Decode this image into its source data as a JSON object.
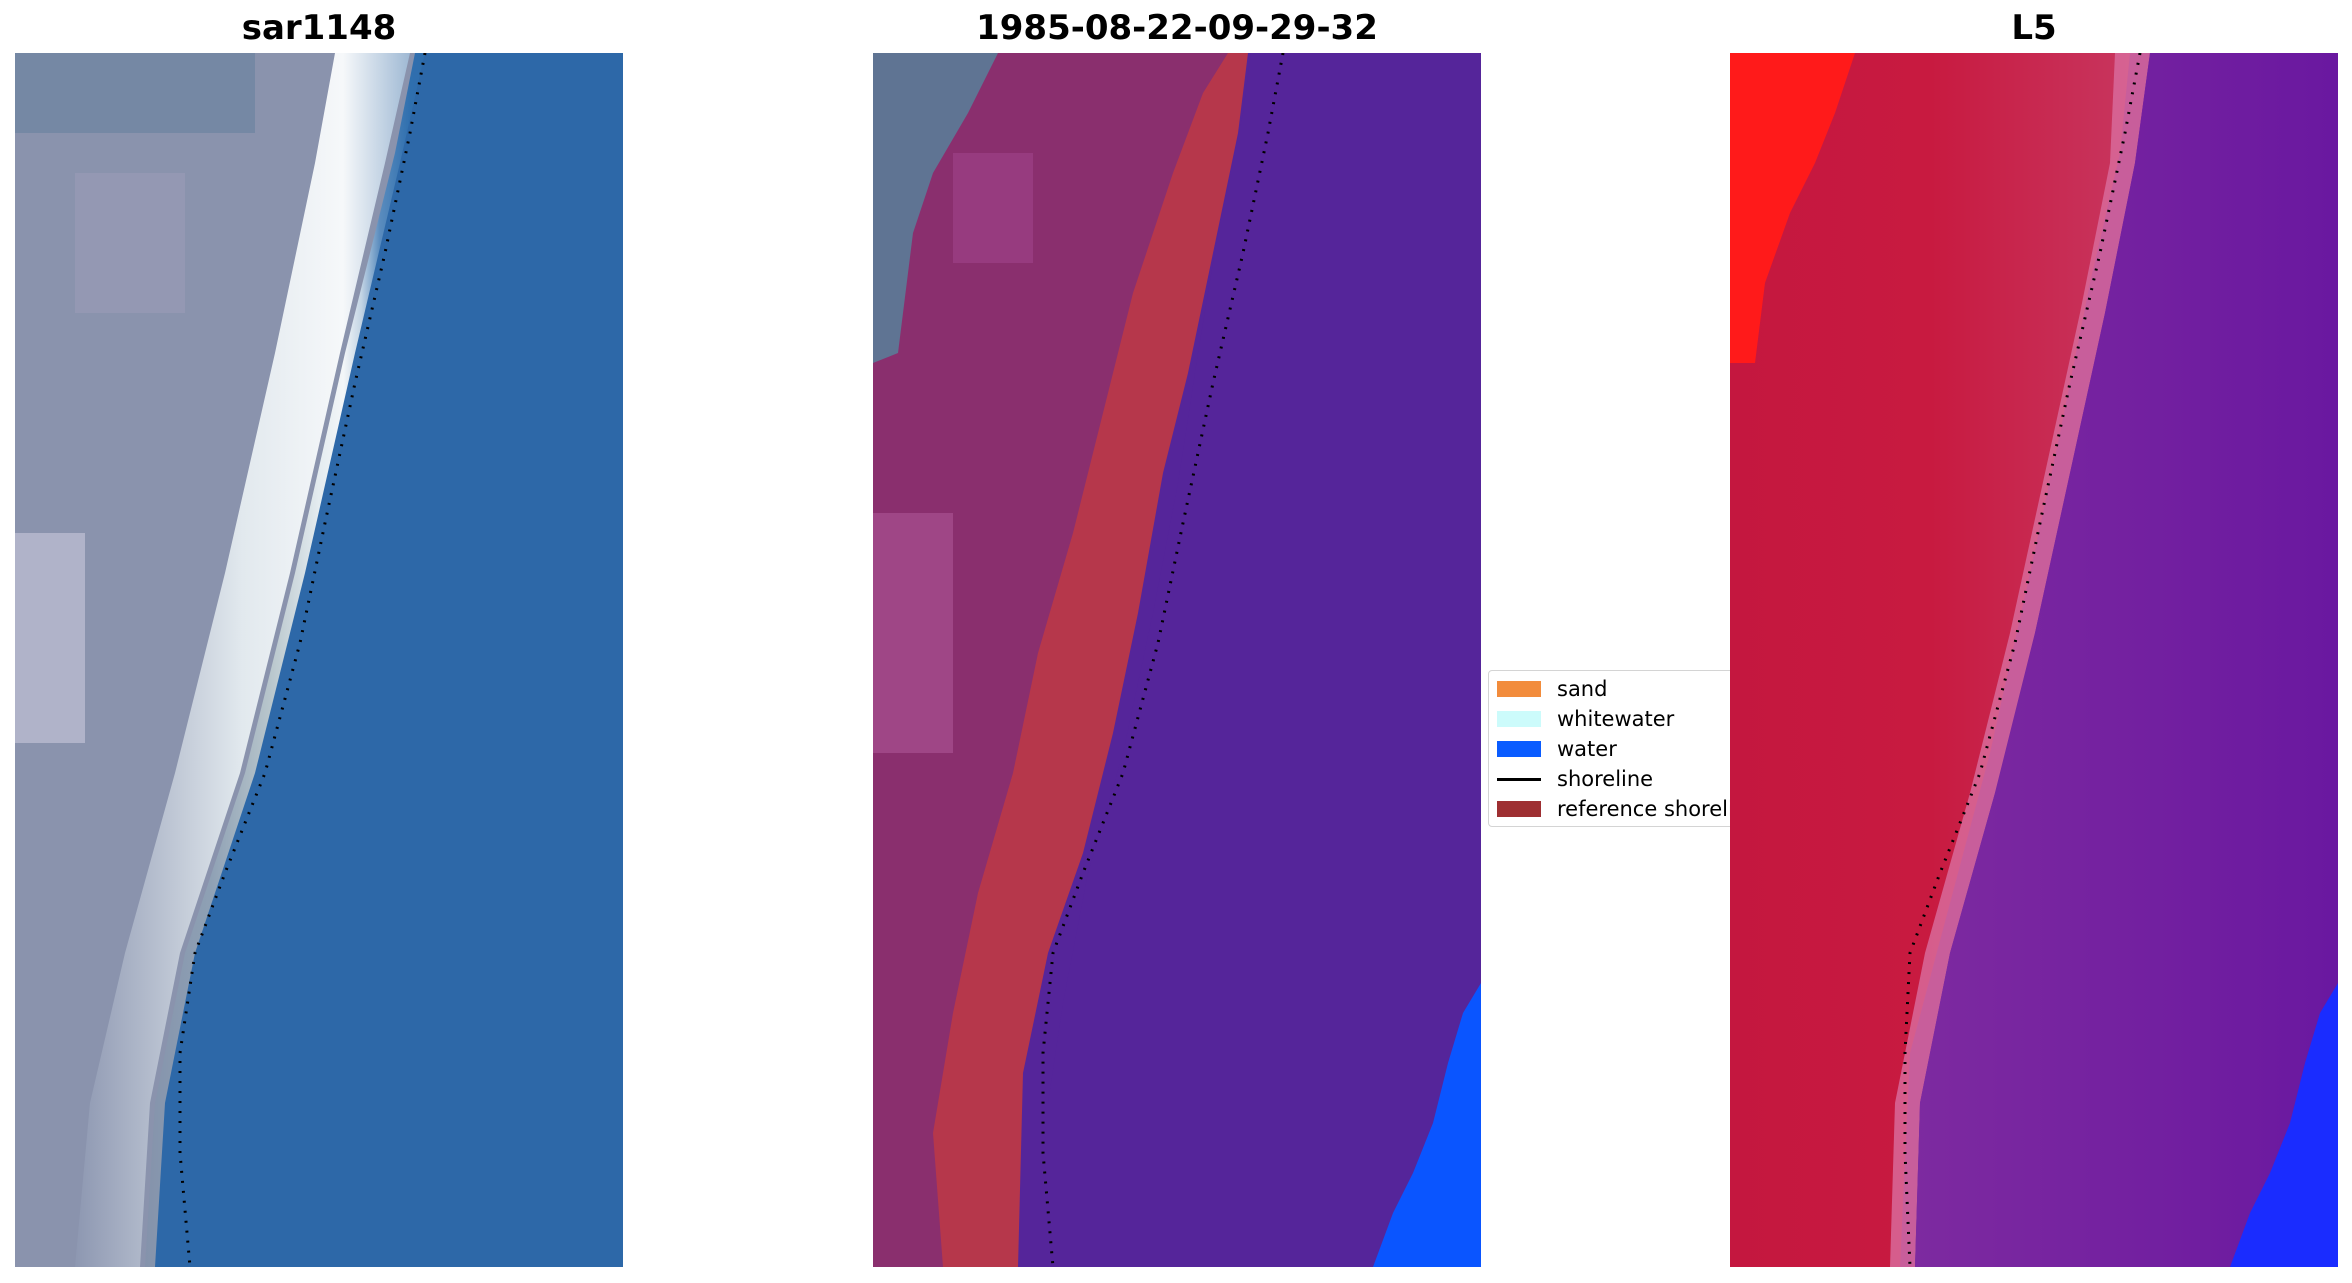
{
  "panels": [
    {
      "title": "sar1148"
    },
    {
      "title": "1985-08-22-09-29-32"
    },
    {
      "title": "L5"
    }
  ],
  "legend": {
    "items": [
      {
        "label": "sand",
        "color": "#f28c3c",
        "kind": "patch"
      },
      {
        "label": "whitewater",
        "color": "#ccfbfb",
        "kind": "patch"
      },
      {
        "label": "water",
        "color": "#0a5cff",
        "kind": "patch"
      },
      {
        "label": "shoreline",
        "color": "#000000",
        "kind": "line"
      },
      {
        "label": "reference shoreline",
        "color": "#9e2f32",
        "kind": "patch"
      }
    ]
  },
  "colors": {
    "sand_overlay": "#b6374b",
    "land_overlay": "#8a2f6e",
    "water_class": "#55259a",
    "water_bright": "#0a55ff",
    "mndwi_land": "#c81a40",
    "mndwi_water": "#6f1fa0",
    "mndwi_red": "#ff1a1a"
  }
}
